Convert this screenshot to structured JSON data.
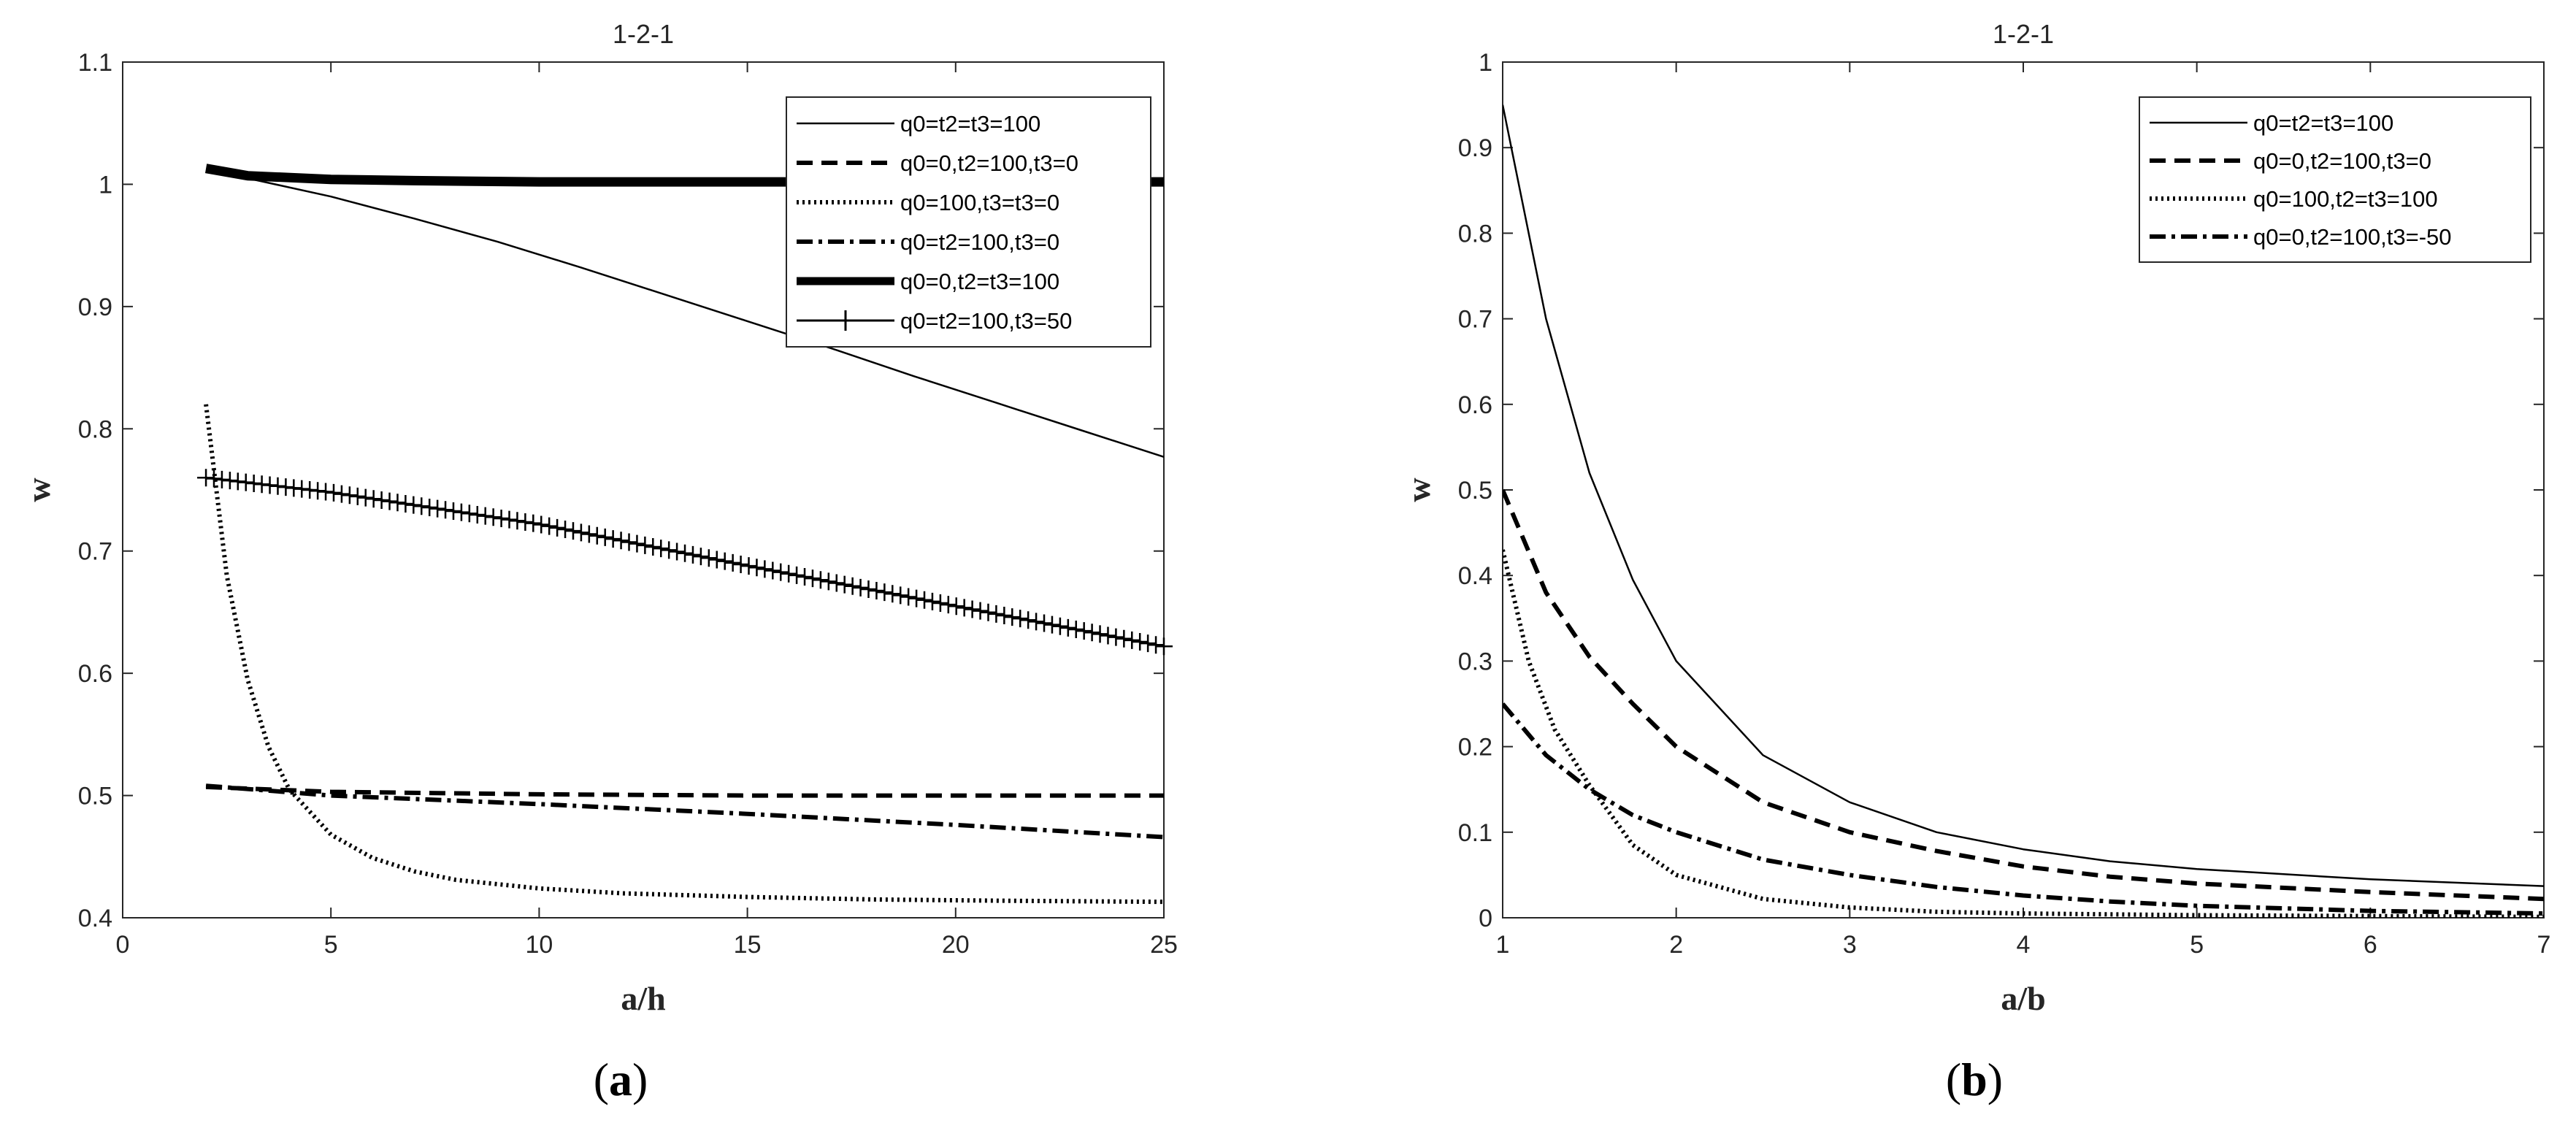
{
  "chart_data": [
    {
      "type": "line",
      "title": "1-2-1",
      "xlabel": "a/h",
      "ylabel": "w",
      "xlim": [
        0,
        25
      ],
      "ylim": [
        0.4,
        1.1
      ],
      "xticks": [
        "0",
        "5",
        "10",
        "15",
        "20",
        "25"
      ],
      "yticks": [
        "0.4",
        "0.5",
        "0.6",
        "0.7",
        "0.8",
        "0.9",
        "1",
        "1.1"
      ],
      "legend_position": "top-right",
      "caption": {
        "open": "(",
        "letter": "a",
        "close": ")"
      },
      "series": [
        {
          "name": "q0=t2=t3=100",
          "style": "solid-thin",
          "x": [
            2,
            3,
            5,
            7,
            9,
            11,
            13,
            15,
            17,
            19,
            21,
            23,
            25
          ],
          "y": [
            1.01,
            1.005,
            0.99,
            0.972,
            0.953,
            0.932,
            0.91,
            0.888,
            0.866,
            0.843,
            0.821,
            0.799,
            0.777
          ]
        },
        {
          "name": "q0=0,t2=100,t3=0",
          "style": "dashed",
          "x": [
            2,
            5,
            10,
            15,
            20,
            25
          ],
          "y": [
            0.507,
            0.503,
            0.501,
            0.5,
            0.5,
            0.5
          ]
        },
        {
          "name": "q0=100,t3=t3=0",
          "style": "dotted",
          "x": [
            2,
            2.5,
            3,
            3.5,
            4,
            5,
            6,
            7,
            8,
            10,
            12,
            15,
            18,
            21,
            25
          ],
          "y": [
            0.82,
            0.68,
            0.595,
            0.54,
            0.505,
            0.468,
            0.449,
            0.438,
            0.431,
            0.424,
            0.42,
            0.417,
            0.415,
            0.414,
            0.413
          ]
        },
        {
          "name": "q0=t2=100,t3=0",
          "style": "dashdot",
          "x": [
            2,
            5,
            10,
            15,
            20,
            25
          ],
          "y": [
            0.508,
            0.5,
            0.493,
            0.485,
            0.476,
            0.466
          ]
        },
        {
          "name": "q0=0,t2=t3=100",
          "style": "solid-thick",
          "x": [
            2,
            3,
            5,
            7,
            10,
            15,
            20,
            25
          ],
          "y": [
            1.013,
            1.007,
            1.004,
            1.003,
            1.002,
            1.002,
            1.002,
            1.002
          ]
        },
        {
          "name": "q0=t2=100,t3=50",
          "style": "solid-plus",
          "x": [
            2,
            5,
            10,
            15,
            20,
            25
          ],
          "y": [
            0.76,
            0.748,
            0.722,
            0.688,
            0.655,
            0.622
          ]
        }
      ]
    },
    {
      "type": "line",
      "title": "1-2-1",
      "xlabel": "a/b",
      "ylabel": "w",
      "xlim": [
        1,
        7
      ],
      "ylim": [
        0,
        1
      ],
      "xticks": [
        "1",
        "2",
        "3",
        "4",
        "5",
        "6",
        "7"
      ],
      "yticks": [
        "0",
        "0.1",
        "0.2",
        "0.3",
        "0.4",
        "0.5",
        "0.6",
        "0.7",
        "0.8",
        "0.9",
        "1"
      ],
      "legend_position": "top-right",
      "caption": {
        "open": "(",
        "letter": "b",
        "close": ")"
      },
      "series": [
        {
          "name": "q0=t2=t3=100",
          "style": "solid-thin",
          "x": [
            1,
            1.25,
            1.5,
            1.75,
            2,
            2.5,
            3,
            3.5,
            4,
            4.5,
            5,
            6,
            7
          ],
          "y": [
            0.95,
            0.7,
            0.52,
            0.395,
            0.3,
            0.19,
            0.135,
            0.1,
            0.08,
            0.066,
            0.057,
            0.045,
            0.037
          ]
        },
        {
          "name": "q0=0,t2=100,t3=0",
          "style": "dashed",
          "x": [
            1,
            1.25,
            1.5,
            1.75,
            2,
            2.5,
            3,
            3.5,
            4,
            4.5,
            5,
            6,
            7
          ],
          "y": [
            0.5,
            0.38,
            0.305,
            0.25,
            0.2,
            0.135,
            0.1,
            0.078,
            0.06,
            0.048,
            0.04,
            0.03,
            0.022
          ]
        },
        {
          "name": "q0=100,t2=t3=100",
          "style": "dotted",
          "x": [
            1,
            1.15,
            1.3,
            1.5,
            1.75,
            2,
            2.5,
            3,
            3.5,
            4,
            5,
            6,
            7
          ],
          "y": [
            0.43,
            0.3,
            0.22,
            0.155,
            0.085,
            0.05,
            0.022,
            0.012,
            0.007,
            0.005,
            0.003,
            0.002,
            0.001
          ]
        },
        {
          "name": "q0=0,t2=100,t3=-50",
          "style": "dashdot",
          "x": [
            1,
            1.25,
            1.5,
            1.75,
            2,
            2.5,
            3,
            3.5,
            4,
            4.5,
            5,
            6,
            7
          ],
          "y": [
            0.25,
            0.19,
            0.15,
            0.12,
            0.1,
            0.068,
            0.05,
            0.036,
            0.026,
            0.019,
            0.014,
            0.008,
            0.005
          ]
        }
      ]
    }
  ]
}
